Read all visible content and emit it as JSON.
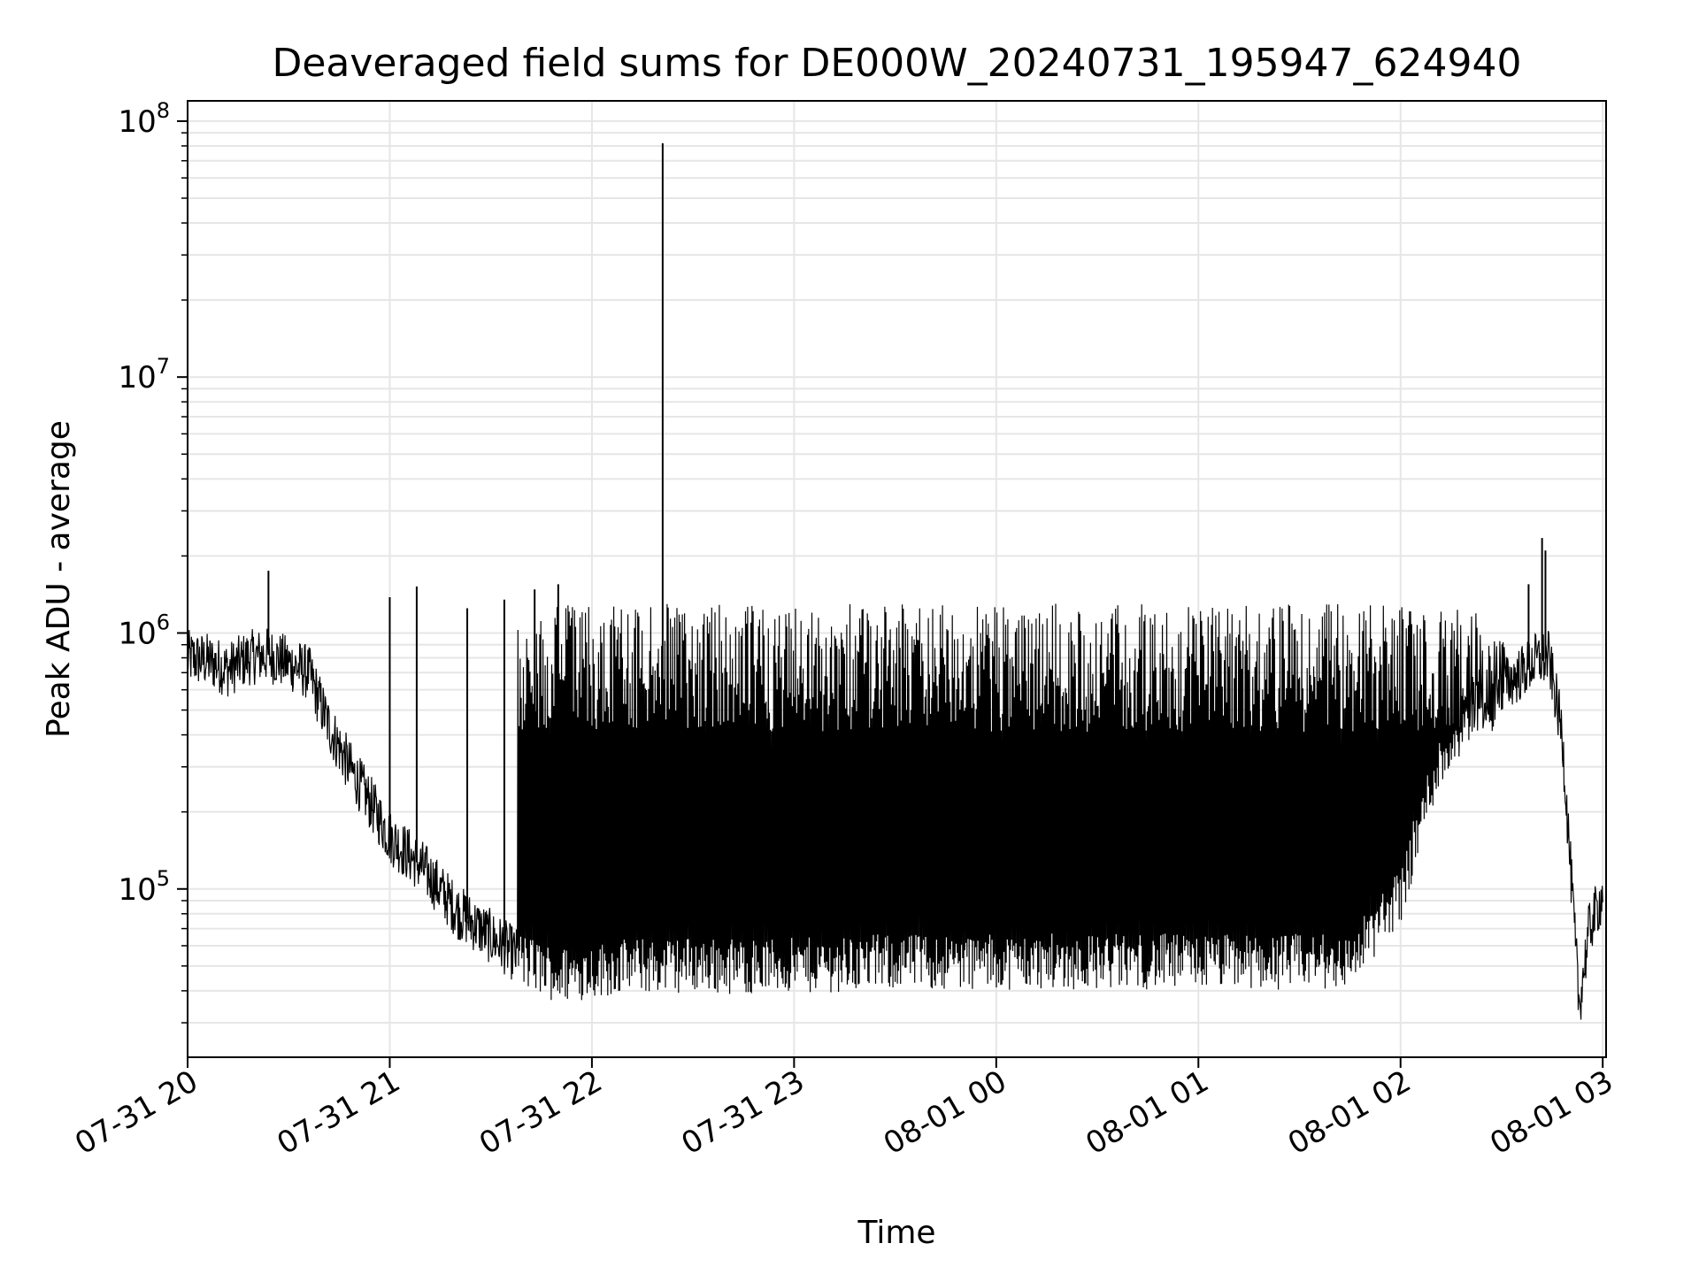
{
  "chart_data": {
    "type": "line",
    "title": "Deaveraged field sums for DE000W_20240731_195947_624940",
    "xlabel": "Time",
    "ylabel": "Peak ADU - average",
    "y_scale": "log",
    "ylim": [
      22000,
      120000000
    ],
    "xlim": [
      "2024-07-31 20:00",
      "2024-08-01 03:01"
    ],
    "grid": true,
    "x_ticks": [
      "07-31 20",
      "07-31 21",
      "07-31 22",
      "07-31 23",
      "08-01 00",
      "08-01 01",
      "08-01 02",
      "08-01 03"
    ],
    "x_tick_times": [
      "2024-07-31 20:00",
      "2024-07-31 21:00",
      "2024-07-31 22:00",
      "2024-07-31 23:00",
      "2024-08-01 00:00",
      "2024-08-01 01:00",
      "2024-08-01 02:00",
      "2024-08-01 03:00"
    ],
    "y_ticks": [
      {
        "base": "10",
        "exp": "5",
        "value": 100000
      },
      {
        "base": "10",
        "exp": "6",
        "value": 1000000
      },
      {
        "base": "10",
        "exp": "7",
        "value": 10000000
      },
      {
        "base": "10",
        "exp": "8",
        "value": 100000000
      }
    ],
    "series": [
      {
        "color": "#000000",
        "x": [
          "2024-07-31 20:00",
          "2024-07-31 20:06",
          "2024-07-31 20:12",
          "2024-07-31 20:18",
          "2024-07-31 20:24",
          "2024-07-31 20:30",
          "2024-07-31 20:36",
          "2024-07-31 20:42",
          "2024-07-31 20:48",
          "2024-07-31 20:54",
          "2024-07-31 21:00",
          "2024-07-31 21:10",
          "2024-07-31 21:20",
          "2024-07-31 21:30",
          "2024-07-31 21:40",
          "2024-07-31 21:50",
          "2024-07-31 22:00",
          "2024-07-31 22:10",
          "2024-07-31 22:20",
          "2024-07-31 22:30",
          "2024-07-31 22:40",
          "2024-07-31 22:50",
          "2024-07-31 23:00",
          "2024-07-31 23:15",
          "2024-07-31 23:30",
          "2024-07-31 23:45",
          "2024-08-01 00:00",
          "2024-08-01 00:15",
          "2024-08-01 00:30",
          "2024-08-01 00:45",
          "2024-08-01 01:00",
          "2024-08-01 01:15",
          "2024-08-01 01:30",
          "2024-08-01 01:45",
          "2024-08-01 02:00",
          "2024-08-01 02:10",
          "2024-08-01 02:20",
          "2024-08-01 02:30",
          "2024-08-01 02:36",
          "2024-08-01 02:40",
          "2024-08-01 02:44",
          "2024-08-01 02:48",
          "2024-08-01 02:50",
          "2024-08-01 02:53",
          "2024-08-01 02:56",
          "2024-08-01 03:00"
        ],
        "y": [
          800000,
          780000,
          720000,
          800000,
          820000,
          760000,
          700000,
          430000,
          300000,
          220000,
          160000,
          120000,
          82000,
          65000,
          52000,
          46000,
          48000,
          50000,
          50000,
          51000,
          50000,
          50000,
          50000,
          51000,
          52000,
          52000,
          52000,
          52000,
          52000,
          52000,
          52000,
          52000,
          52000,
          52000,
          95000,
          280000,
          480000,
          620000,
          700000,
          780000,
          800000,
          400000,
          150000,
          35000,
          70000,
          95000
        ],
        "spikes": [
          {
            "x": "2024-07-31 20:24",
            "y": 1750000
          },
          {
            "x": "2024-07-31 21:00",
            "y": 1380000
          },
          {
            "x": "2024-07-31 21:08",
            "y": 1520000
          },
          {
            "x": "2024-07-31 21:23",
            "y": 1250000
          },
          {
            "x": "2024-07-31 21:34",
            "y": 1350000
          },
          {
            "x": "2024-07-31 21:43",
            "y": 1480000
          },
          {
            "x": "2024-07-31 21:50",
            "y": 1550000
          },
          {
            "x": "2024-07-31 22:21",
            "y": 82000000
          },
          {
            "x": "2024-08-01 02:38",
            "y": 1550000
          },
          {
            "x": "2024-08-01 02:42",
            "y": 2350000
          },
          {
            "x": "2024-08-01 02:43",
            "y": 2100000
          }
        ],
        "band": {
          "x_start": "2024-07-31 21:38",
          "x_end": "2024-08-01 02:31",
          "y_low": 47000,
          "y_high": 1300000
        }
      }
    ]
  }
}
